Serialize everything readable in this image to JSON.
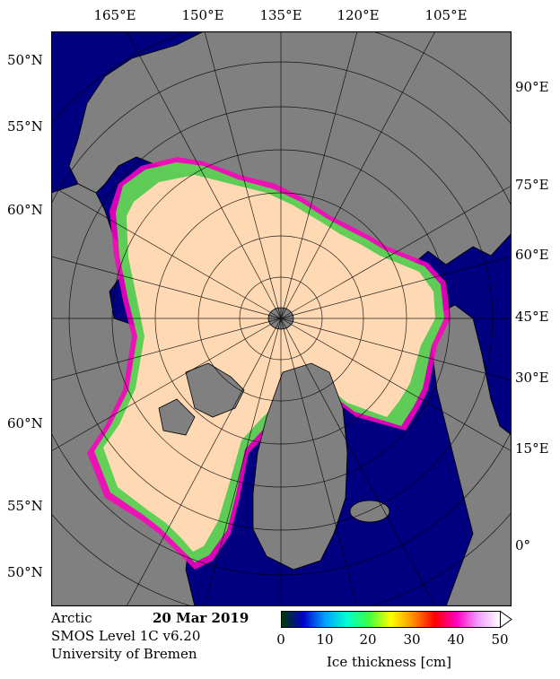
{
  "top_labels": [
    "165°E",
    "150°E",
    "135°E",
    "120°E",
    "105°E"
  ],
  "left_labels": [
    "50°N",
    "55°N",
    "60°N",
    "60°N",
    "55°N",
    "50°N"
  ],
  "right_labels": [
    "90°E",
    "75°E",
    "60°E",
    "45°E",
    "30°E",
    "15°E",
    "0°"
  ],
  "footer": {
    "region": "Arctic",
    "date": "20 Mar 2019",
    "product": "SMOS Level 1C v6.20",
    "institution": "University of Bremen"
  },
  "colorbar": {
    "ticks": [
      "0",
      "10",
      "20",
      "30",
      "40",
      "50"
    ],
    "label": "Ice thickness [cm]",
    "colors": [
      "#003a00",
      "#0000c8",
      "#00a0ff",
      "#00ffd0",
      "#40ff40",
      "#ffff00",
      "#ff9000",
      "#ff0000",
      "#ff00c0",
      "#f0a0ff",
      "#ffffff"
    ]
  },
  "map_colors": {
    "ocean": "#000080",
    "land": "#808080",
    "thick_ice": "#ffd9b3"
  }
}
